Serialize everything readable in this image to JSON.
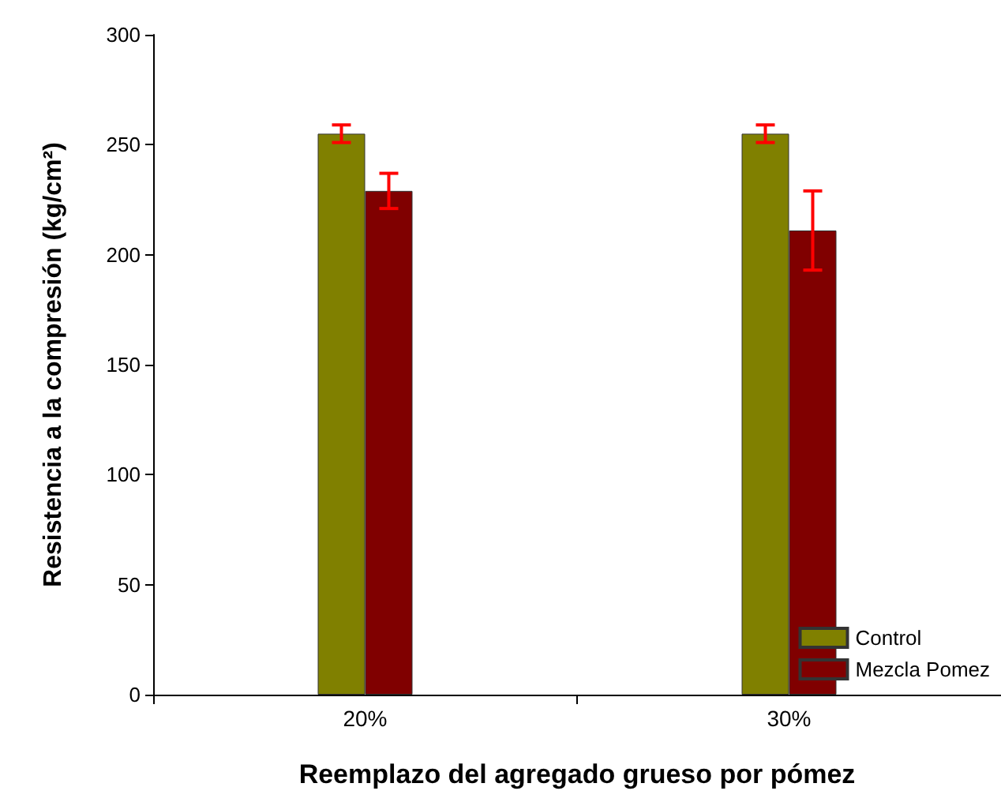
{
  "chart_data": {
    "type": "bar",
    "xlabel": "Reemplazo del agregado grueso por pómez",
    "ylabel": "Resistencia a la compresión (kg/cm²)",
    "categories": [
      "20%",
      "30%"
    ],
    "series": [
      {
        "name": "Control",
        "color": "#808000",
        "values": [
          255,
          255
        ],
        "errors": [
          4,
          4
        ]
      },
      {
        "name": "Mezcla Pomez",
        "color": "#800000",
        "values": [
          229,
          211
        ],
        "errors": [
          8,
          18
        ]
      }
    ],
    "ylim": [
      0,
      300
    ],
    "yticks": [
      0,
      50,
      100,
      150,
      200,
      250,
      300
    ],
    "grid": false,
    "legend": "bottom right"
  }
}
